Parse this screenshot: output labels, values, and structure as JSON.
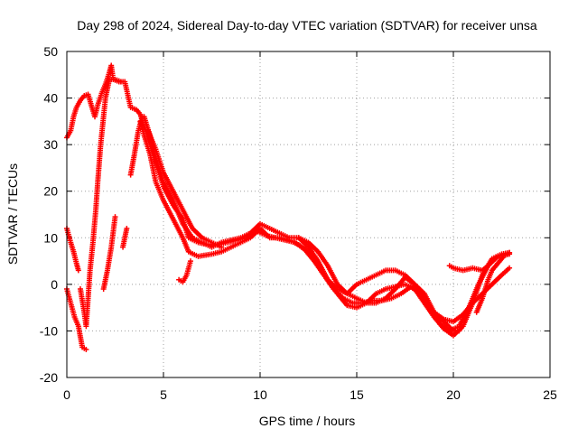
{
  "chart_data": {
    "type": "scatter",
    "title": "Day 298 of 2024, Sidereal Day-to-day VTEC variation (SDTVAR) for receiver unsa",
    "xlabel": "GPS time / hours",
    "ylabel": "SDTVAR / TECUs",
    "xlim": [
      0,
      25
    ],
    "ylim": [
      -20,
      50
    ],
    "xticks": [
      0,
      5,
      10,
      15,
      20,
      25
    ],
    "yticks": [
      -20,
      -10,
      0,
      10,
      20,
      30,
      40,
      50
    ],
    "grid": true,
    "marker": "+",
    "color": "#ff0000",
    "series": [
      {
        "name": "track-1",
        "points": [
          [
            0,
            31.5
          ],
          [
            0.2,
            33
          ],
          [
            0.35,
            36
          ],
          [
            0.5,
            38
          ],
          [
            0.7,
            39.5
          ],
          [
            0.9,
            40.5
          ],
          [
            1.1,
            40.8
          ],
          [
            1.3,
            38
          ],
          [
            1.45,
            36
          ],
          [
            1.6,
            38.5
          ],
          [
            1.8,
            41
          ],
          [
            2.0,
            43
          ],
          [
            2.2,
            45.5
          ],
          [
            2.3,
            47
          ],
          [
            2.4,
            44
          ],
          [
            2.7,
            43.5
          ],
          [
            3.0,
            43.5
          ],
          [
            3.3,
            38
          ],
          [
            3.6,
            37.5
          ],
          [
            3.8,
            36.5
          ],
          [
            4.0,
            34
          ],
          [
            4.3,
            30
          ],
          [
            4.6,
            26
          ],
          [
            5.0,
            21
          ],
          [
            5.5,
            17
          ],
          [
            6.0,
            14
          ],
          [
            6.3,
            10
          ],
          [
            6.8,
            9
          ],
          [
            7.3,
            8.5
          ],
          [
            7.8,
            8.5
          ],
          [
            8.3,
            9
          ],
          [
            8.8,
            9.5
          ],
          [
            9.3,
            10
          ],
          [
            9.8,
            11.5
          ],
          [
            10.3,
            10.5
          ],
          [
            10.8,
            10
          ],
          [
            11.3,
            9.5
          ],
          [
            11.8,
            9
          ],
          [
            12.3,
            7.5
          ],
          [
            12.8,
            5
          ],
          [
            13.3,
            2
          ],
          [
            13.8,
            -1
          ],
          [
            14.3,
            -3
          ],
          [
            14.8,
            -4
          ],
          [
            15.3,
            -4
          ],
          [
            15.8,
            -3.5
          ],
          [
            16.3,
            -3.5
          ],
          [
            16.8,
            -3
          ],
          [
            17.3,
            -2
          ],
          [
            17.8,
            -0.5
          ],
          [
            18.3,
            -2
          ],
          [
            18.8,
            -5
          ],
          [
            19.3,
            -8.5
          ],
          [
            19.8,
            -10
          ],
          [
            20.3,
            -9
          ],
          [
            20.8,
            -5
          ],
          [
            21.3,
            0
          ],
          [
            21.8,
            4
          ],
          [
            22.3,
            6
          ],
          [
            22.9,
            6.5
          ]
        ]
      },
      {
        "name": "track-2",
        "points": [
          [
            0,
            12
          ],
          [
            0.2,
            9
          ],
          [
            0.35,
            7
          ],
          [
            0.5,
            4.5
          ],
          [
            0.6,
            3
          ]
        ]
      },
      {
        "name": "track-3",
        "points": [
          [
            0,
            -1
          ],
          [
            0.2,
            -4
          ],
          [
            0.4,
            -7
          ],
          [
            0.6,
            -9
          ],
          [
            0.8,
            -13.5
          ],
          [
            1.0,
            -14
          ]
        ]
      },
      {
        "name": "track-4",
        "points": [
          [
            0.7,
            -1
          ],
          [
            0.9,
            -6
          ],
          [
            1.0,
            -9
          ],
          [
            1.1,
            -3
          ],
          [
            1.2,
            3
          ],
          [
            1.35,
            9
          ],
          [
            1.5,
            16
          ],
          [
            1.6,
            22
          ],
          [
            1.75,
            30
          ],
          [
            1.9,
            36
          ],
          [
            2.0,
            40
          ],
          [
            2.2,
            44
          ],
          [
            2.5,
            44
          ],
          [
            2.8,
            43.5
          ]
        ]
      },
      {
        "name": "track-5",
        "points": [
          [
            1.9,
            -1
          ],
          [
            2.1,
            3
          ],
          [
            2.3,
            8
          ],
          [
            2.5,
            14.5
          ]
        ]
      },
      {
        "name": "track-6",
        "points": [
          [
            2.9,
            8
          ],
          [
            3.0,
            10
          ],
          [
            3.1,
            12
          ]
        ]
      },
      {
        "name": "track-7",
        "points": [
          [
            3.3,
            23.5
          ],
          [
            3.5,
            28
          ],
          [
            3.7,
            33
          ],
          [
            3.9,
            36
          ]
        ]
      },
      {
        "name": "track-8",
        "points": [
          [
            3.8,
            35
          ],
          [
            4.0,
            32
          ],
          [
            4.3,
            28
          ],
          [
            4.6,
            22
          ],
          [
            5.0,
            18
          ],
          [
            5.5,
            14
          ],
          [
            6.0,
            10
          ],
          [
            6.3,
            7
          ],
          [
            6.8,
            6
          ],
          [
            7.5,
            6.5
          ],
          [
            8.0,
            7
          ],
          [
            8.5,
            8
          ],
          [
            9.0,
            9
          ],
          [
            9.5,
            10
          ],
          [
            10.0,
            12
          ],
          [
            10.5,
            10
          ],
          [
            11.0,
            10
          ],
          [
            11.5,
            9.5
          ],
          [
            12.0,
            8.5
          ],
          [
            12.5,
            7
          ],
          [
            13.0,
            4
          ],
          [
            13.5,
            1
          ],
          [
            14.0,
            -2
          ],
          [
            14.5,
            -4.5
          ],
          [
            15.0,
            -5
          ],
          [
            15.5,
            -4
          ],
          [
            16.0,
            -2
          ],
          [
            16.5,
            -1
          ],
          [
            17.0,
            -0.5
          ],
          [
            17.5,
            0
          ],
          [
            18.0,
            -1
          ],
          [
            18.5,
            -4
          ],
          [
            19.0,
            -7
          ],
          [
            19.5,
            -9.5
          ],
          [
            20.0,
            -11
          ],
          [
            20.5,
            -9
          ],
          [
            21.0,
            -4
          ],
          [
            21.5,
            2
          ],
          [
            22.0,
            5.5
          ],
          [
            22.5,
            6.5
          ],
          [
            22.9,
            6.8
          ]
        ]
      },
      {
        "name": "track-9",
        "points": [
          [
            4.0,
            36
          ],
          [
            4.3,
            32
          ],
          [
            4.6,
            27
          ],
          [
            5.0,
            22
          ],
          [
            5.5,
            18
          ],
          [
            6.0,
            13
          ],
          [
            6.5,
            10
          ],
          [
            7.0,
            9
          ],
          [
            7.5,
            8
          ],
          [
            8.0,
            9
          ],
          [
            8.5,
            9.5
          ],
          [
            9.0,
            10
          ],
          [
            9.5,
            11
          ],
          [
            10.0,
            13
          ],
          [
            10.5,
            12
          ],
          [
            11.0,
            11
          ],
          [
            11.5,
            10
          ],
          [
            12.0,
            10
          ],
          [
            12.5,
            8
          ],
          [
            13.0,
            5
          ],
          [
            13.5,
            1
          ],
          [
            14.0,
            -1
          ],
          [
            14.5,
            -2
          ],
          [
            15.0,
            0
          ],
          [
            15.5,
            1
          ],
          [
            16.0,
            2
          ],
          [
            16.5,
            3
          ],
          [
            17.0,
            3
          ],
          [
            17.5,
            2
          ],
          [
            18.0,
            0
          ],
          [
            18.5,
            -2
          ],
          [
            19.0,
            -6
          ],
          [
            19.5,
            -8
          ],
          [
            20.0,
            -10
          ],
          [
            20.3,
            -10
          ]
        ]
      },
      {
        "name": "track-10",
        "points": [
          [
            4.2,
            33
          ],
          [
            4.6,
            29
          ],
          [
            5.0,
            24
          ],
          [
            5.5,
            20
          ],
          [
            6.0,
            16
          ],
          [
            6.5,
            12
          ],
          [
            7.0,
            10
          ],
          [
            7.5,
            9
          ],
          [
            8.0,
            8
          ]
        ]
      },
      {
        "name": "track-11",
        "points": [
          [
            5.8,
            1
          ],
          [
            6.0,
            0.5
          ],
          [
            6.2,
            2
          ],
          [
            6.4,
            5
          ]
        ]
      },
      {
        "name": "track-12",
        "points": [
          [
            12.0,
            10
          ],
          [
            12.5,
            9
          ],
          [
            13.0,
            7
          ],
          [
            13.5,
            4
          ],
          [
            14.0,
            0
          ],
          [
            14.5,
            -2
          ],
          [
            15.0,
            -3
          ],
          [
            15.5,
            -4
          ],
          [
            16.0,
            -4
          ],
          [
            16.5,
            -3
          ],
          [
            17.0,
            -1
          ],
          [
            17.5,
            1.5
          ],
          [
            18.0,
            0
          ],
          [
            18.5,
            -3
          ],
          [
            19.0,
            -6
          ],
          [
            19.5,
            -7.5
          ],
          [
            20.0,
            -8
          ],
          [
            20.5,
            -6.5
          ],
          [
            21.0,
            -4
          ],
          [
            21.5,
            -2
          ],
          [
            22.0,
            0
          ],
          [
            22.5,
            2
          ],
          [
            22.9,
            3.5
          ]
        ]
      },
      {
        "name": "track-13",
        "points": [
          [
            19.8,
            4
          ],
          [
            20.0,
            3.5
          ],
          [
            20.5,
            3
          ],
          [
            21.0,
            3.5
          ],
          [
            21.5,
            3
          ],
          [
            21.8,
            4
          ]
        ]
      },
      {
        "name": "track-14",
        "points": [
          [
            21.2,
            -6
          ],
          [
            21.5,
            -3
          ],
          [
            21.8,
            1
          ],
          [
            22.0,
            3
          ],
          [
            22.3,
            4.5
          ],
          [
            22.6,
            6
          ],
          [
            22.9,
            6.8
          ]
        ]
      }
    ]
  }
}
